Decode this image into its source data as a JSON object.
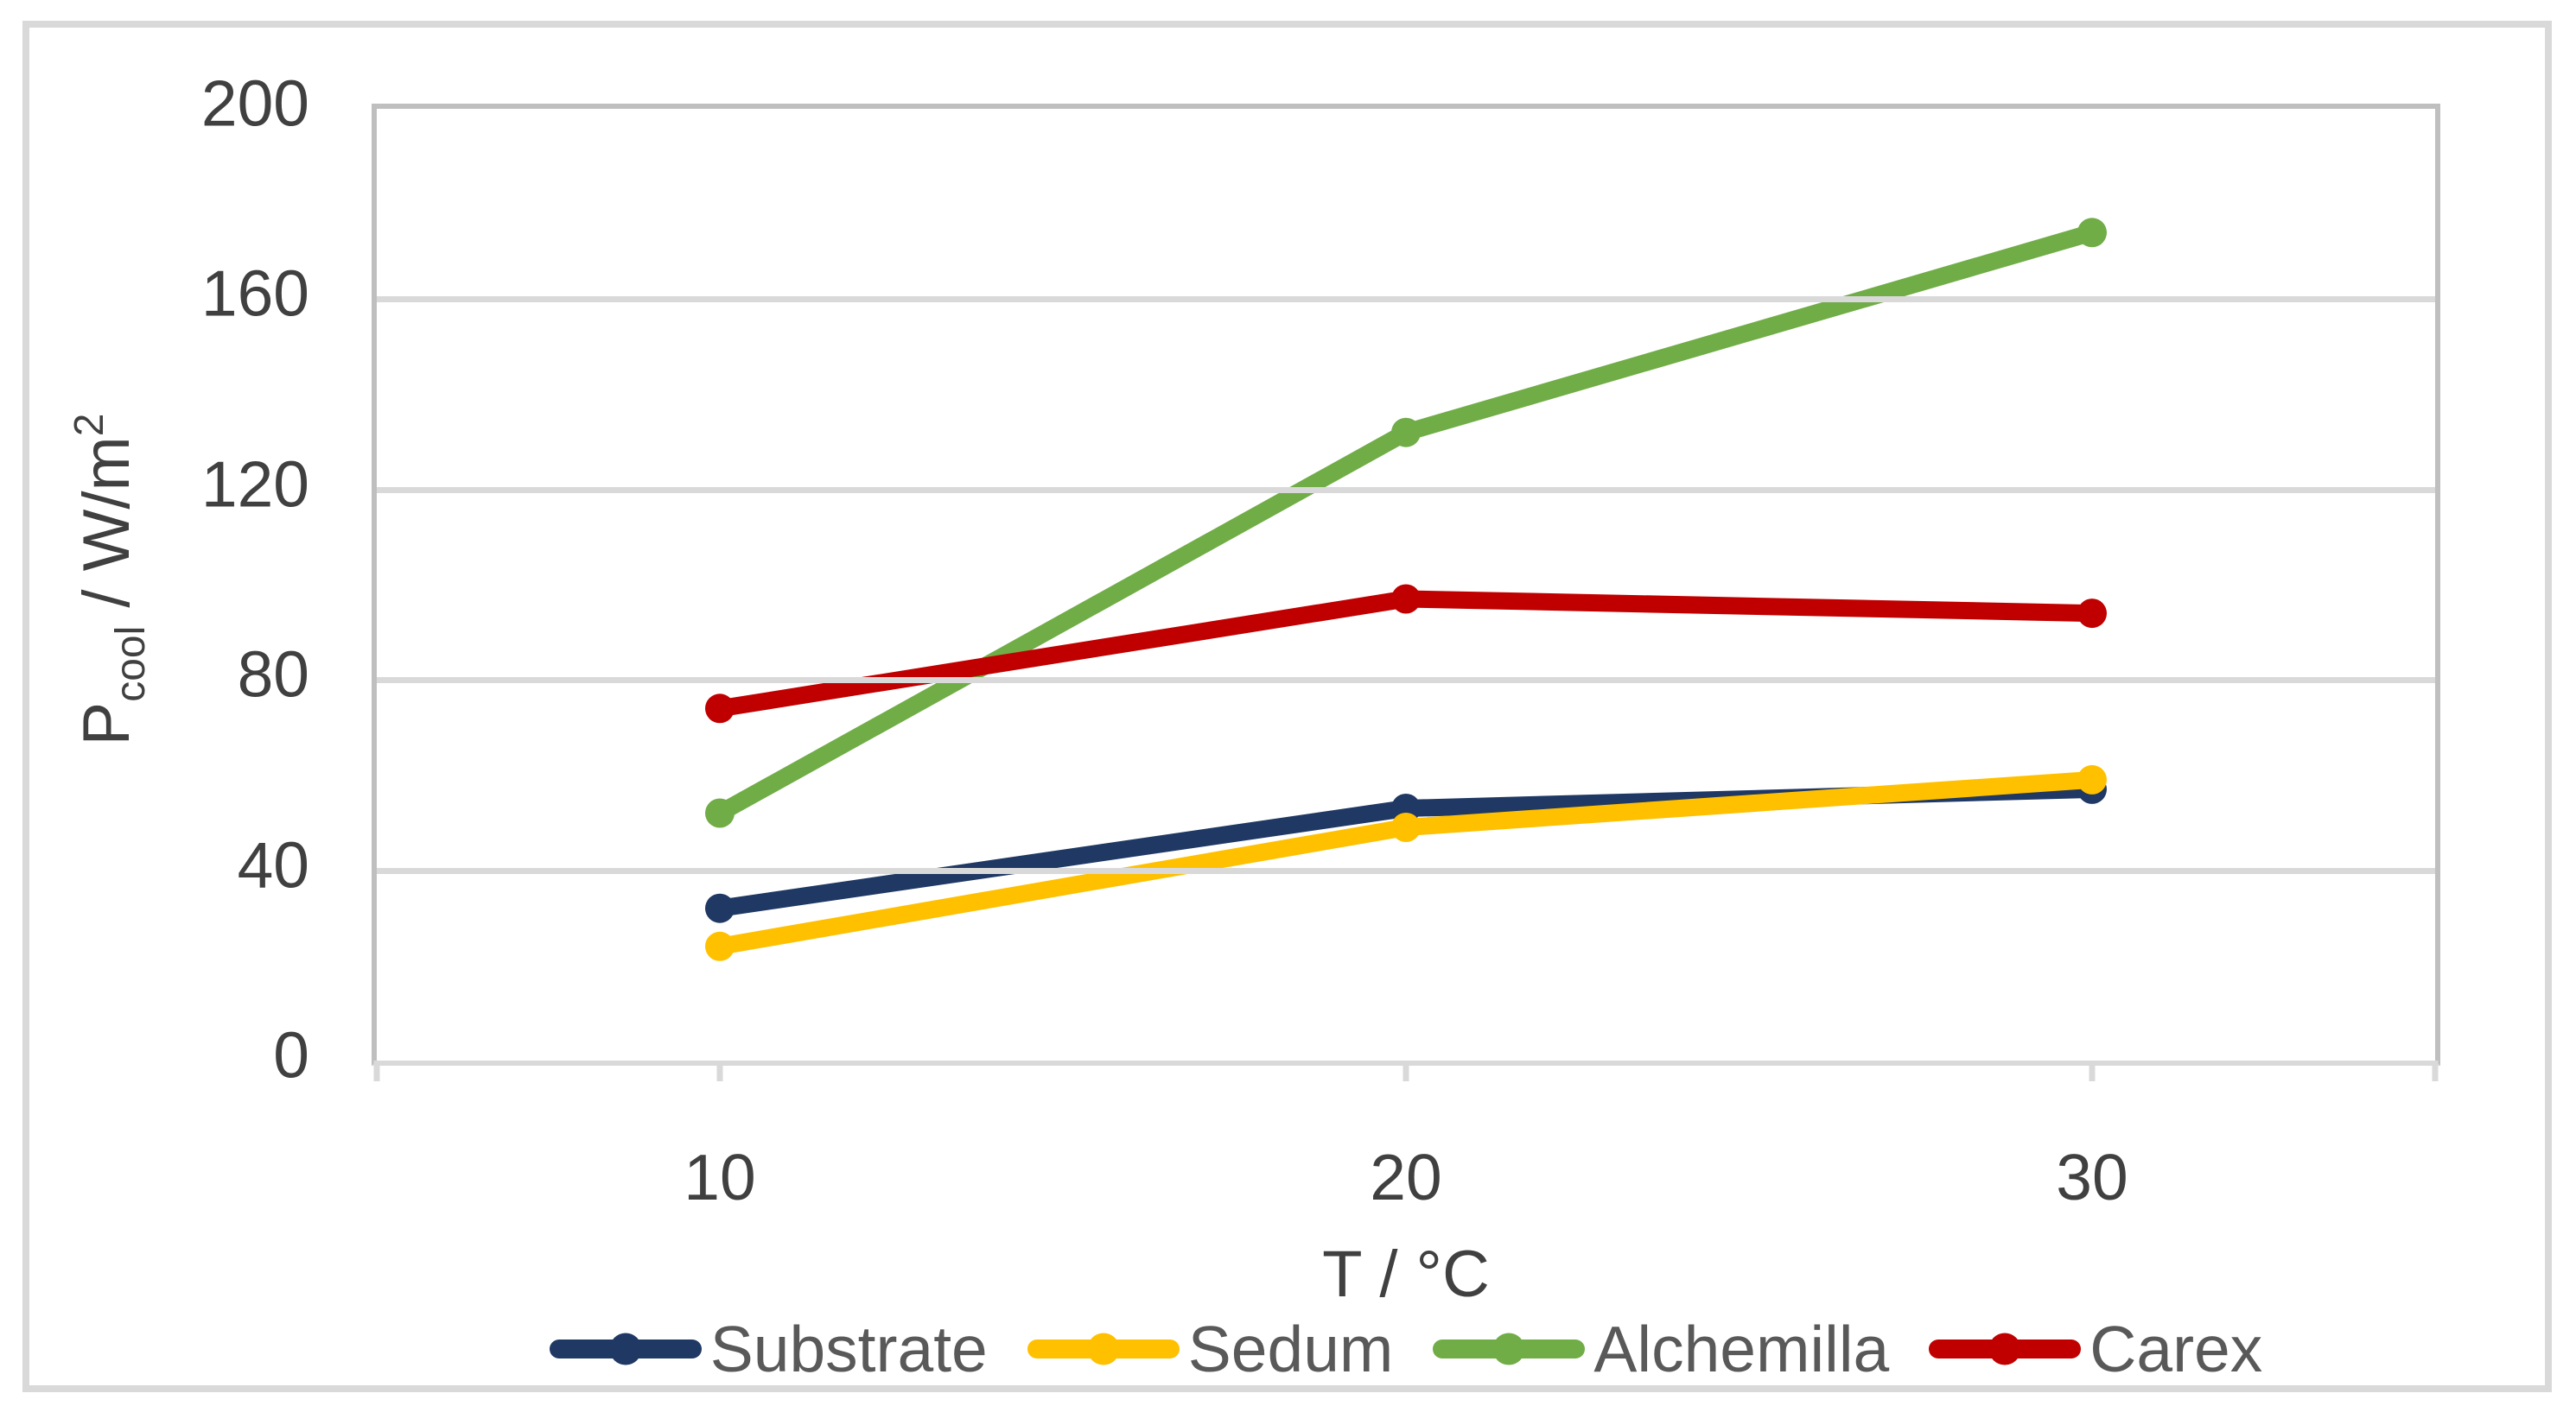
{
  "figure": {
    "background_color": "#FFFFFF",
    "outer_border_color": "#D9D9D9",
    "plot_border_color": "#BFBFBF",
    "gridline_color": "#D9D9D9",
    "tick_color": "#D9D9D9",
    "tick_label_color": "#404040",
    "axis_title_color": "#404040",
    "legend_text_color": "#595959"
  },
  "chart_data": {
    "type": "line",
    "x": [
      10,
      20,
      30
    ],
    "series": [
      {
        "name": "Substrate",
        "color": "#1F3864",
        "values": [
          32,
          53,
          57
        ]
      },
      {
        "name": "Sedum",
        "color": "#FFC000",
        "values": [
          24,
          49,
          59
        ]
      },
      {
        "name": "Alchemilla",
        "color": "#70AD47",
        "values": [
          52,
          132,
          174
        ]
      },
      {
        "name": "Carex",
        "color": "#C00000",
        "values": [
          74,
          97,
          94
        ]
      }
    ],
    "title": "",
    "xlabel": "T / °C",
    "ylabel": "Pcool / W/m²",
    "ylabel_parts": {
      "base": "P",
      "subscript": "cool",
      "mid": " / W/m",
      "superscript": "2"
    },
    "xlim": [
      5,
      35
    ],
    "ylim": [
      0,
      200
    ],
    "xticks": [
      10,
      20,
      30
    ],
    "yticks": [
      0,
      40,
      80,
      120,
      160,
      200
    ],
    "grid": true,
    "legend_position": "bottom",
    "marker": "circle",
    "line_width": 20,
    "marker_radius": 17
  }
}
